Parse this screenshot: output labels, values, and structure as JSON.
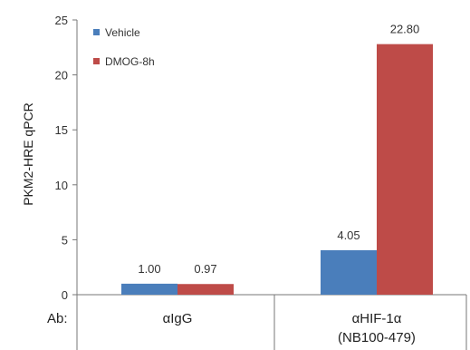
{
  "chart_data": {
    "type": "bar",
    "ylabel": "PKM2-HRE qPCR",
    "ylim": [
      0,
      25
    ],
    "yticks": [
      "0",
      "5",
      "10",
      "15",
      "20",
      "25"
    ],
    "row_label": "Ab:",
    "categories": [
      {
        "line1": "αIgG",
        "line2": ""
      },
      {
        "line1": "αHIF-1α",
        "line2": "(NB100-479)"
      }
    ],
    "series": [
      {
        "name": "Vehicle",
        "color": "#4a7ebb",
        "values": [
          1.0,
          4.05
        ],
        "labels": [
          "1.00",
          "4.05"
        ]
      },
      {
        "name": "DMOG-8h",
        "color": "#be4b48",
        "values": [
          0.97,
          22.8
        ],
        "labels": [
          "0.97",
          "22.80"
        ]
      }
    ],
    "grid": false,
    "legend_position": "top-left"
  }
}
